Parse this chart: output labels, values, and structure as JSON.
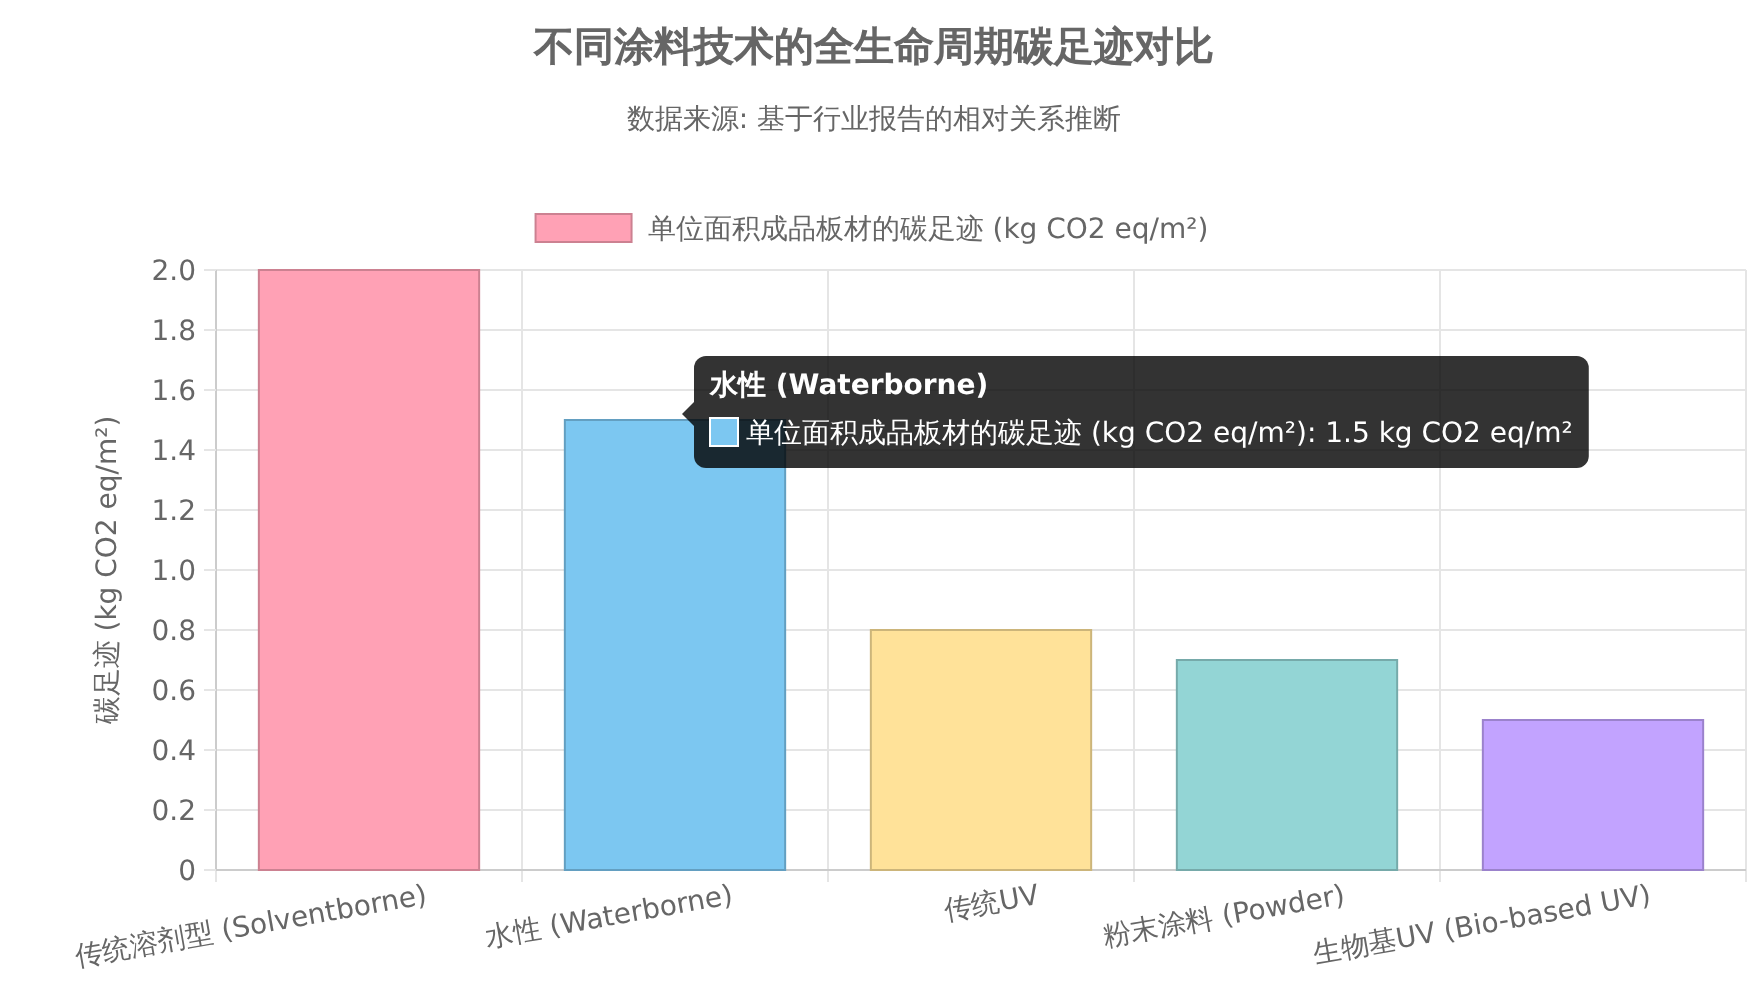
{
  "chart_data": {
    "type": "bar",
    "title": "不同涂料技术的全生命周期碳足迹对比",
    "subtitle": "数据来源: 基于行业报告的相对关系推断",
    "ylabel": "碳足迹 (kg CO2 eq/m²)",
    "categories": [
      "传统溶剂型 (Solventborne)",
      "水性 (Waterborne)",
      "传统UV",
      "粉末涂料 (Powder)",
      "生物基UV (Bio-based UV)"
    ],
    "series": [
      {
        "name": "单位面积成品板材的碳足迹 (kg CO2 eq/m²)",
        "color": "#ffa1b5",
        "colors": [
          "#ffa1b5",
          "#7cc7f1",
          "#ffe299",
          "#93d5d5",
          "#c2a3ff"
        ],
        "values": [
          2.0,
          1.5,
          0.8,
          0.7,
          0.5
        ]
      }
    ],
    "ylim": [
      0,
      2.0
    ],
    "yticks": [
      {
        "value": 0,
        "label": "0"
      },
      {
        "value": 0.2,
        "label": "0.2"
      },
      {
        "value": 0.4,
        "label": "0.4"
      },
      {
        "value": 0.6,
        "label": "0.6"
      },
      {
        "value": 0.8,
        "label": "0.8"
      },
      {
        "value": 1.0,
        "label": "1.0"
      },
      {
        "value": 1.2,
        "label": "1.2"
      },
      {
        "value": 1.4,
        "label": "1.4"
      },
      {
        "value": 1.6,
        "label": "1.6"
      },
      {
        "value": 1.8,
        "label": "1.8"
      },
      {
        "value": 2.0,
        "label": "2.0"
      }
    ],
    "grid": true,
    "legend": "top",
    "annotations": [
      "水性 (Waterborne)",
      "单位面积成品板材的碳足迹 (kg CO2 eq/m²): 1.5 kg CO2 eq/m²"
    ]
  }
}
